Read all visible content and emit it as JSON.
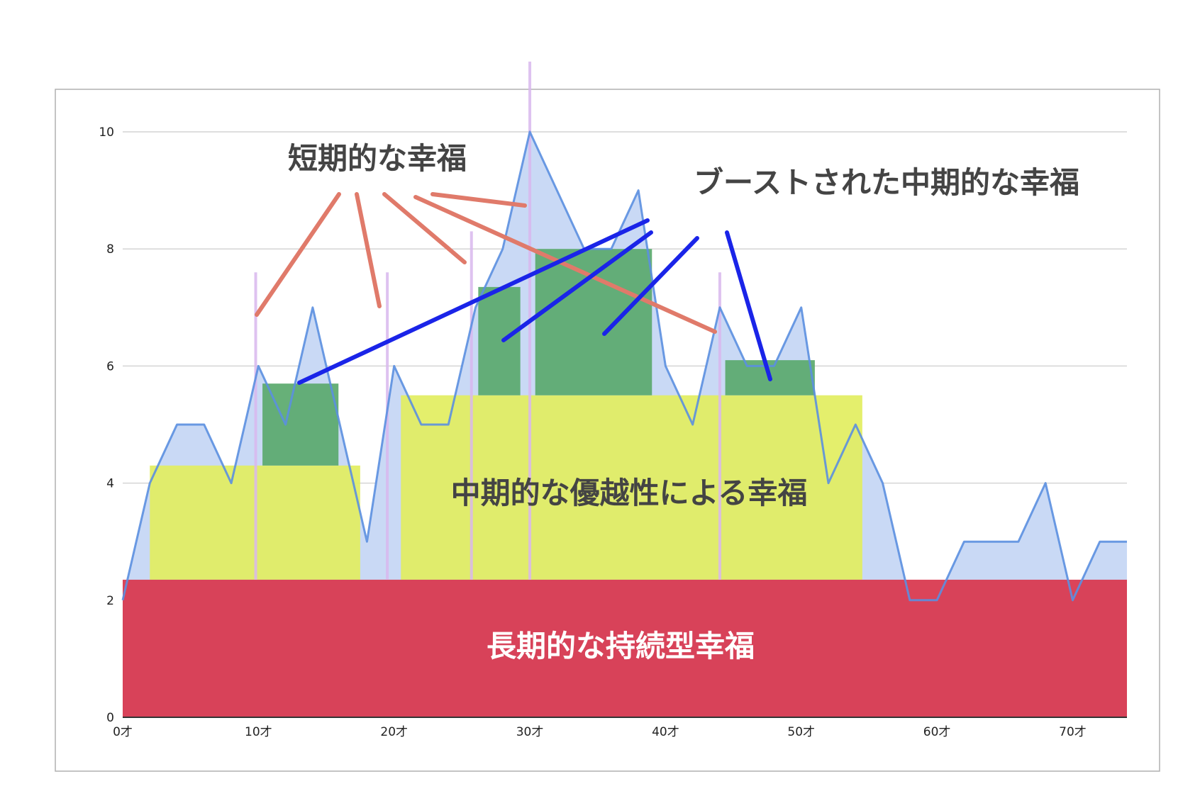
{
  "chart_data": {
    "type": "area",
    "x": [
      0,
      2,
      4,
      6,
      8,
      10,
      12,
      14,
      16,
      18,
      20,
      22,
      24,
      26,
      28,
      30,
      32,
      34,
      36,
      38,
      40,
      42,
      44,
      46,
      48,
      50,
      52,
      54,
      56,
      58,
      60,
      62,
      64,
      66,
      68,
      70,
      72,
      74
    ],
    "series": [
      {
        "values": [
          2,
          4,
          5,
          5,
          4,
          6,
          5,
          7,
          5,
          3,
          6,
          5,
          5,
          7,
          8,
          10,
          9,
          8,
          8,
          9,
          6,
          5,
          7,
          6,
          6,
          7,
          4,
          5,
          4,
          2,
          2,
          3,
          3,
          3,
          4,
          2,
          3,
          3
        ]
      }
    ],
    "xlim": [
      0,
      74
    ],
    "ylim": [
      0,
      10.5
    ],
    "x_ticks": [
      {
        "value": 0,
        "label": "0才"
      },
      {
        "value": 10,
        "label": "10才"
      },
      {
        "value": 20,
        "label": "20才"
      },
      {
        "value": 30,
        "label": "30才"
      },
      {
        "value": 40,
        "label": "40才"
      },
      {
        "value": 50,
        "label": "50才"
      },
      {
        "value": 60,
        "label": "60才"
      },
      {
        "value": 70,
        "label": "70才"
      }
    ],
    "y_ticks": [
      {
        "value": 0,
        "label": "0"
      },
      {
        "value": 2,
        "label": "2"
      },
      {
        "value": 4,
        "label": "4"
      },
      {
        "value": 6,
        "label": "6"
      },
      {
        "value": 8,
        "label": "8"
      },
      {
        "value": 10,
        "label": "10"
      }
    ],
    "grid": true,
    "colors": {
      "line": "#5b8fe0",
      "area": "#c9d9f5",
      "long_term": "#d93a50",
      "mid_term": "#e2ee60",
      "boosted": "#5aa96c",
      "spike": "#d9b8ee",
      "annotation_short": "#e07a6a",
      "annotation_boost": "#1a24e8"
    },
    "bands": {
      "long_term": {
        "x0": 0,
        "x1": 74,
        "y0": 0,
        "y1": 2.35
      },
      "mid_term": [
        {
          "x0": 2,
          "x1": 17.5,
          "y0": 2.35,
          "y1": 4.3
        },
        {
          "x0": 20.5,
          "x1": 54.5,
          "y0": 2.35,
          "y1": 5.5
        }
      ],
      "boosted": [
        {
          "x0": 10.3,
          "x1": 15.9,
          "y0": 4.3,
          "y1": 5.7
        },
        {
          "x0": 26.2,
          "x1": 29.3,
          "y0": 5.5,
          "y1": 7.35
        },
        {
          "x0": 30.4,
          "x1": 39,
          "y0": 5.5,
          "y1": 8
        },
        {
          "x0": 44.4,
          "x1": 51,
          "y0": 5.5,
          "y1": 6.1
        }
      ]
    },
    "spikes": [
      {
        "x": 9.8,
        "y1": 7.6
      },
      {
        "x": 19.5,
        "y1": 7.6
      },
      {
        "x": 25.7,
        "y1": 8.3
      },
      {
        "x": 30,
        "y1": 11.2
      },
      {
        "x": 44,
        "y1": 7.6
      }
    ],
    "labels": {
      "long_term": "長期的な持続型幸福",
      "mid_term": "中期的な優越性による幸福",
      "short_term": "短期的な幸福",
      "boosted": "ブーストされた中期的な幸福"
    }
  }
}
